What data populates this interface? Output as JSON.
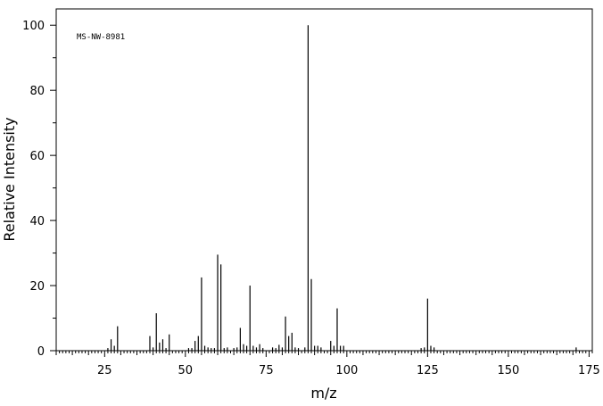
{
  "chart_data": {
    "type": "bar",
    "title": "",
    "annotation": "MS-NW-8981",
    "xlabel": "m/z",
    "ylabel": "Relative Intensity",
    "xlim": [
      10,
      176
    ],
    "ylim": [
      0,
      105
    ],
    "x_ticks": [
      25,
      50,
      75,
      100,
      125,
      150,
      175
    ],
    "y_ticks": [
      0,
      20,
      40,
      60,
      80,
      100
    ],
    "grid": false,
    "legend": "none",
    "series": [
      {
        "x": [
          26,
          27,
          28,
          29,
          39,
          40,
          41,
          42,
          43,
          44,
          45,
          51,
          52,
          53,
          54,
          55,
          56,
          57,
          58,
          59,
          60,
          61,
          62,
          63,
          65,
          66,
          67,
          68,
          69,
          70,
          71,
          72,
          73,
          74,
          77,
          78,
          79,
          80,
          81,
          82,
          83,
          84,
          85,
          87,
          88,
          89,
          90,
          91,
          92,
          95,
          96,
          97,
          98,
          99,
          123,
          124,
          125,
          126,
          127,
          171
        ],
        "y": [
          0.8,
          3.5,
          1.5,
          7.5,
          4.5,
          1.0,
          11.5,
          2.5,
          3.5,
          0.8,
          5.0,
          0.8,
          0.8,
          3.0,
          4.5,
          22.5,
          1.5,
          1.0,
          0.8,
          0.8,
          29.5,
          26.5,
          0.8,
          1.0,
          0.8,
          1.0,
          7.0,
          2.0,
          1.5,
          20.0,
          1.5,
          1.0,
          2.0,
          0.8,
          1.0,
          0.8,
          1.8,
          1.0,
          10.5,
          4.5,
          5.5,
          1.0,
          0.8,
          1.0,
          100,
          22.0,
          1.5,
          1.5,
          1.0,
          3.0,
          1.5,
          13.0,
          1.5,
          1.5,
          0.8,
          1.0,
          16.0,
          1.5,
          1.0,
          1.0
        ]
      }
    ]
  }
}
